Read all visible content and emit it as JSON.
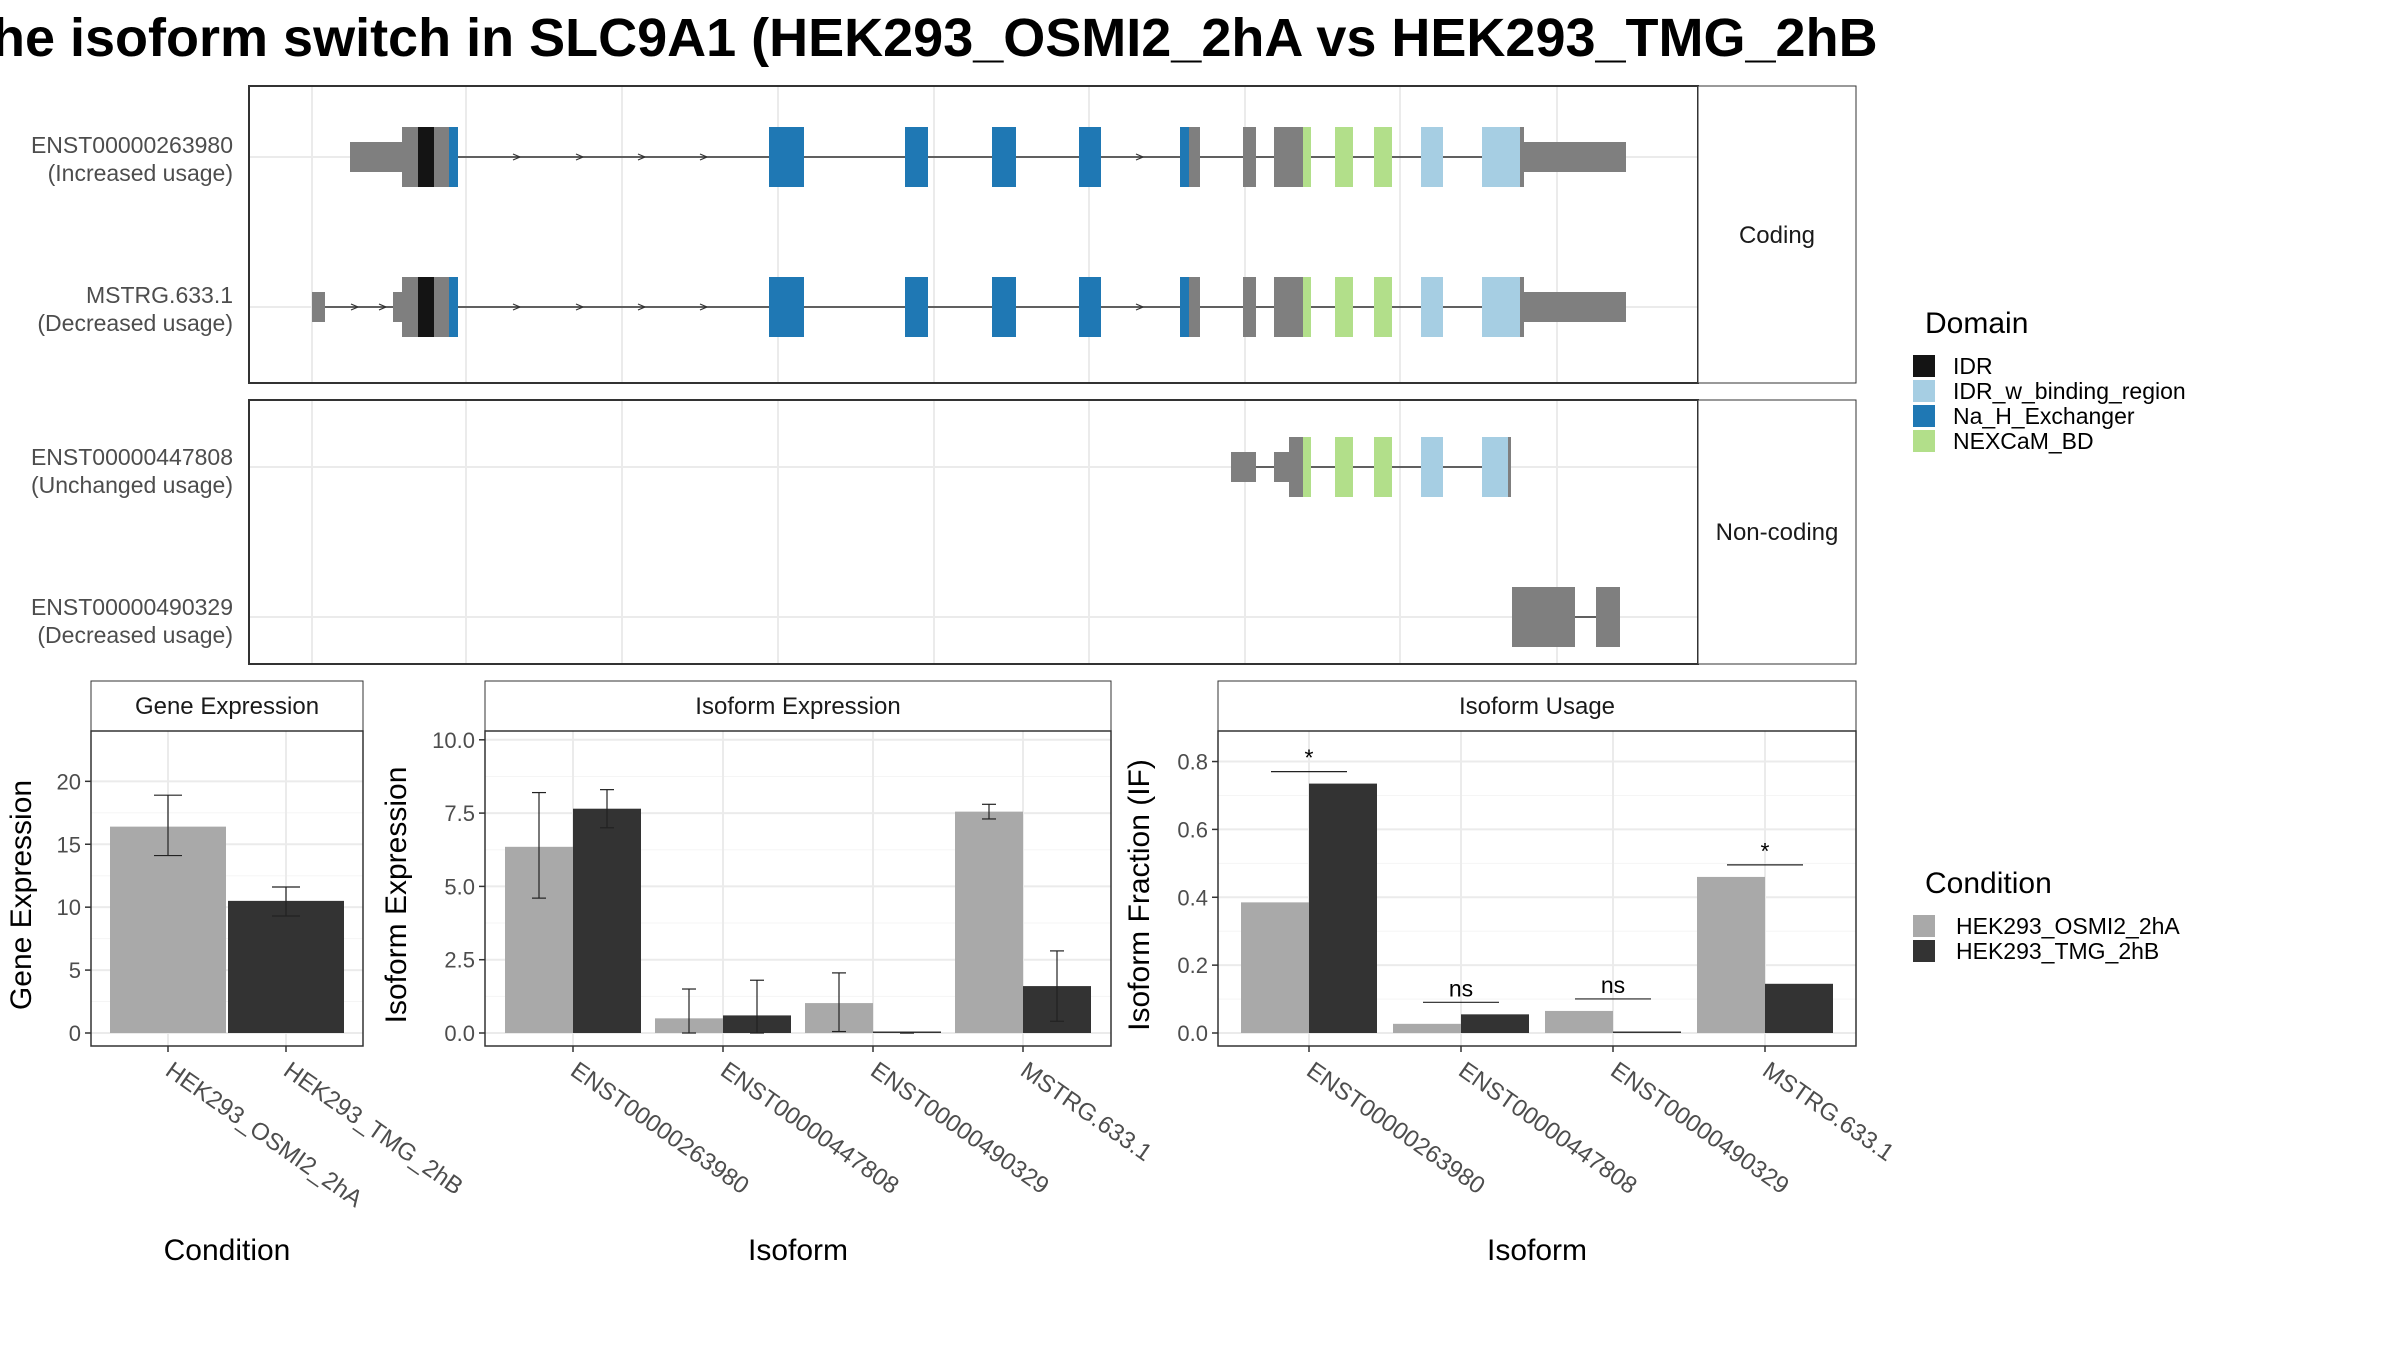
{
  "title": "he isoform switch in SLC9A1 (HEK293_OSMI2_2hA vs HEK293_TMG_2hB",
  "colors": {
    "IDR": "#141414",
    "IDR_w_binding_region": "#a6cee3",
    "Na_H_Exchanger": "#1f78b4",
    "NEXCaM_BD": "#b2df8a",
    "none": "#7f7f7f",
    "cond1": "#a9a9a9",
    "cond2": "#333333"
  },
  "structure": {
    "facets": [
      {
        "label": "Coding",
        "isoforms": [
          {
            "id": "ENST00000263980",
            "usage": "(Increased usage)"
          },
          {
            "id": "MSTRG.633.1",
            "usage": "(Decreased usage)"
          }
        ]
      },
      {
        "label": "Non-coding",
        "isoforms": [
          {
            "id": "ENST00000447808",
            "usage": "(Unchanged usage)"
          },
          {
            "id": "ENST00000490329",
            "usage": "(Decreased usage)"
          }
        ]
      }
    ]
  },
  "legend_domain": {
    "title": "Domain",
    "items": [
      {
        "label": "IDR",
        "color_key": "IDR"
      },
      {
        "label": "IDR_w_binding_region",
        "color_key": "IDR_w_binding_region"
      },
      {
        "label": "Na_H_Exchanger",
        "color_key": "Na_H_Exchanger"
      },
      {
        "label": "NEXCaM_BD",
        "color_key": "NEXCaM_BD"
      }
    ]
  },
  "legend_condition": {
    "title": "Condition",
    "items": [
      {
        "label": "HEK293_OSMI2_2hA",
        "color_key": "cond1"
      },
      {
        "label": "HEK293_TMG_2hB",
        "color_key": "cond2"
      }
    ]
  },
  "chart_data": [
    {
      "type": "bar",
      "title": "Gene Expression",
      "xlabel": "Condition",
      "ylabel": "Gene Expression",
      "ylim": [
        0,
        24
      ],
      "yticks": [
        0,
        5,
        10,
        15,
        20
      ],
      "categories": [
        "HEK293_OSMI2_2hA",
        "HEK293_TMG_2hB"
      ],
      "values": [
        16.4,
        10.5
      ],
      "error_low": [
        14.1,
        9.3
      ],
      "error_high": [
        18.9,
        11.6
      ]
    },
    {
      "type": "bar",
      "title": "Isoform Expression",
      "xlabel": "Isoform",
      "ylabel": "Isoform Expression",
      "ylim": [
        0,
        10.3
      ],
      "yticks": [
        "0.0",
        "2.5",
        "5.0",
        "7.5",
        "10.0"
      ],
      "categories": [
        "ENST00000263980",
        "ENST00000447808",
        "ENST00000490329",
        "MSTRG.633.1"
      ],
      "series": [
        {
          "name": "HEK293_OSMI2_2hA",
          "values": [
            6.35,
            0.5,
            1.02,
            7.55
          ],
          "error_low": [
            4.6,
            0.0,
            0.05,
            7.3
          ],
          "error_high": [
            8.2,
            1.5,
            2.05,
            7.8
          ]
        },
        {
          "name": "HEK293_TMG_2hB",
          "values": [
            7.65,
            0.6,
            0.0,
            1.6
          ],
          "error_low": [
            7.0,
            0.0,
            0.0,
            0.4
          ],
          "error_high": [
            8.3,
            1.8,
            0.0,
            2.8
          ]
        }
      ]
    },
    {
      "type": "bar",
      "title": "Isoform Usage",
      "xlabel": "Isoform",
      "ylabel": "Isoform Fraction (IF)",
      "ylim": [
        0,
        0.89
      ],
      "yticks": [
        "0.0",
        "0.2",
        "0.4",
        "0.6",
        "0.8"
      ],
      "categories": [
        "ENST00000263980",
        "ENST00000447808",
        "ENST00000490329",
        "MSTRG.633.1"
      ],
      "series": [
        {
          "name": "HEK293_OSMI2_2hA",
          "values": [
            0.385,
            0.027,
            0.065,
            0.46
          ]
        },
        {
          "name": "HEK293_TMG_2hB",
          "values": [
            0.735,
            0.055,
            0.0,
            0.145
          ]
        }
      ],
      "significance": [
        "*",
        "ns",
        "ns",
        "*"
      ]
    }
  ]
}
